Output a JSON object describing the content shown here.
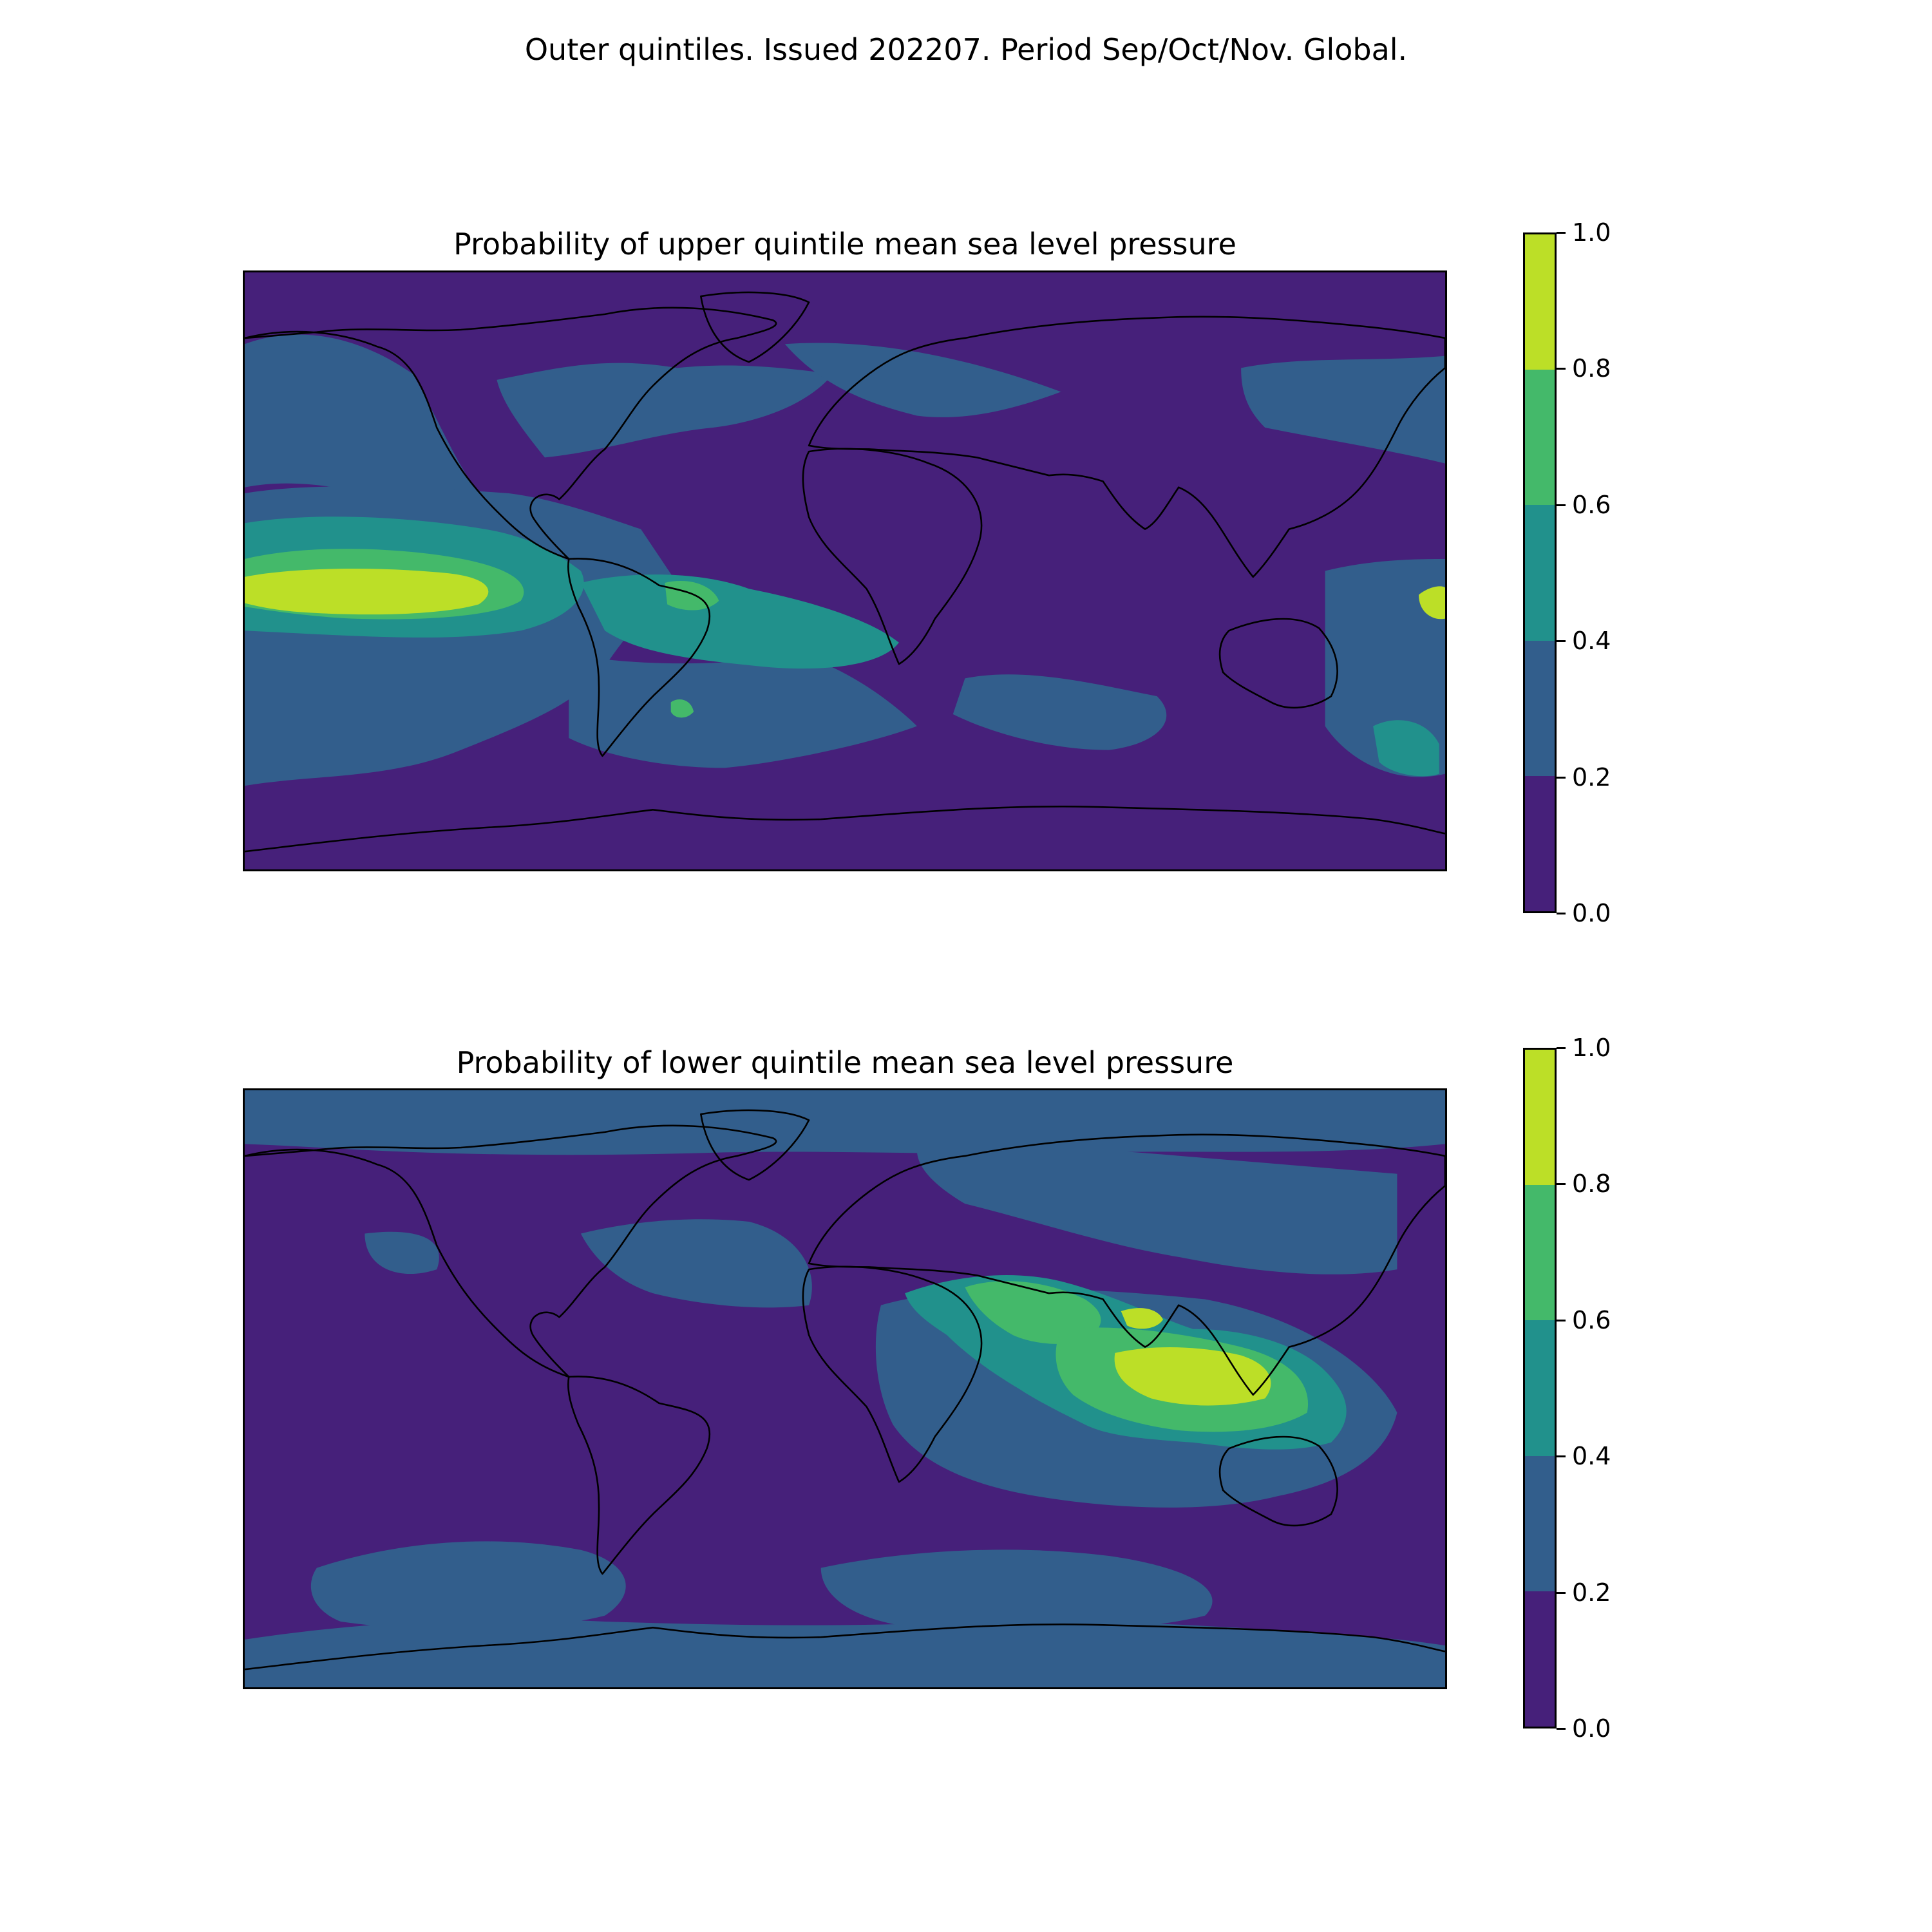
{
  "figure": {
    "suptitle": "Outer quintiles. Issued 202207. Period Sep/Oct/Nov. Global."
  },
  "colorbar": {
    "ticks": [
      "0.0",
      "0.2",
      "0.4",
      "0.6",
      "0.8",
      "1.0"
    ],
    "colors": [
      "#46207a",
      "#325e8c",
      "#21918c",
      "#44b96a",
      "#bcdf27"
    ],
    "bins": [
      [
        0.0,
        0.2
      ],
      [
        0.2,
        0.4
      ],
      [
        0.4,
        0.6
      ],
      [
        0.6,
        0.8
      ],
      [
        0.8,
        1.0
      ]
    ]
  },
  "panels": [
    {
      "title": "Probability of upper quintile mean sea level pressure",
      "background_level": 0,
      "regions": [
        {
          "level": 1,
          "desc": "broad eastern/central Pacific band"
        },
        {
          "level": 1,
          "desc": "north Pacific / Alaska region"
        },
        {
          "level": 1,
          "desc": "north Atlantic / Canada region"
        },
        {
          "level": 1,
          "desc": "Europe / Eurasia region"
        },
        {
          "level": 1,
          "desc": "western Pacific near Japan"
        },
        {
          "level": 1,
          "desc": "South Atlantic / Southern Ocean"
        },
        {
          "level": 1,
          "desc": "southern Indian Ocean"
        },
        {
          "level": 2,
          "desc": "tropical eastern Pacific"
        },
        {
          "level": 2,
          "desc": "South America / South Atlantic"
        },
        {
          "level": 2,
          "desc": "New Zealand area"
        },
        {
          "level": 3,
          "desc": "central Pacific ring"
        },
        {
          "level": 3,
          "desc": "Brazil / Argentina patches"
        },
        {
          "level": 4,
          "desc": "central tropical Pacific core"
        },
        {
          "level": 4,
          "desc": "far western Pacific edge"
        }
      ]
    },
    {
      "title": "Probability of lower quintile mean sea level pressure",
      "background_level": 0,
      "regions": [
        {
          "level": 1,
          "desc": "Arctic band"
        },
        {
          "level": 1,
          "desc": "Eurasia / Siberia"
        },
        {
          "level": 1,
          "desc": "Indian Ocean / Australia basin"
        },
        {
          "level": 1,
          "desc": "South Atlantic Southern Ocean"
        },
        {
          "level": 1,
          "desc": "South Pacific Southern Ocean"
        },
        {
          "level": 1,
          "desc": "Antarctic coastal band"
        },
        {
          "level": 1,
          "desc": "North Atlantic / Sahara"
        },
        {
          "level": 2,
          "desc": "Arabian Sea / Indian Ocean"
        },
        {
          "level": 2,
          "desc": "Maritime Continent"
        },
        {
          "level": 3,
          "desc": "India / Bay of Bengal"
        },
        {
          "level": 3,
          "desc": "eastern Indian Ocean"
        },
        {
          "level": 4,
          "desc": "Indonesia / NW Australia core"
        },
        {
          "level": 4,
          "desc": "Indochina patch"
        }
      ]
    }
  ]
}
